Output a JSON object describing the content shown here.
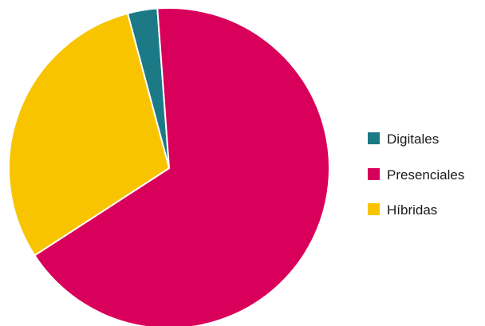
{
  "chart_data": {
    "type": "pie",
    "title": "",
    "categories": [
      "Digitales",
      "Presenciales",
      "Híbridas"
    ],
    "values": [
      3,
      67,
      30
    ],
    "unit": "%",
    "colors": [
      "#1b7a85",
      "#d9005b",
      "#f8c400"
    ],
    "start_angle_deg": -15,
    "direction": "clockwise",
    "legend": {
      "placement": "right",
      "entries": [
        "Digitales",
        "Presenciales",
        "Híbridas"
      ]
    }
  }
}
